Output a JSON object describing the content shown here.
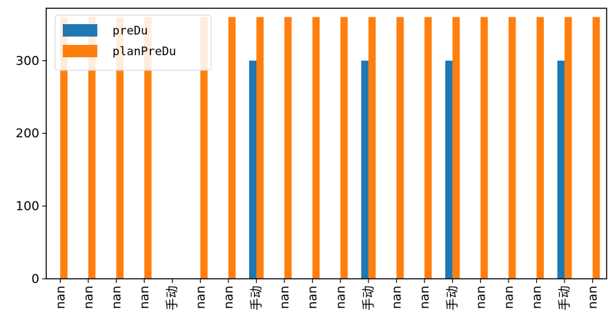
{
  "chart_data": {
    "type": "bar",
    "categories": [
      "nan",
      "nan",
      "nan",
      "nan",
      "手动",
      "nan",
      "nan",
      "手动",
      "nan",
      "nan",
      "nan",
      "手动",
      "nan",
      "nan",
      "手动",
      "nan",
      "nan",
      "nan",
      "手动",
      "nan"
    ],
    "series": [
      {
        "name": "preDu",
        "color": "#1f77b4",
        "values": [
          0,
          0,
          0,
          0,
          0,
          0,
          0,
          300,
          0,
          0,
          0,
          300,
          0,
          0,
          300,
          0,
          0,
          0,
          300,
          0
        ]
      },
      {
        "name": "planPreDu",
        "color": "#ff7f0e",
        "values": [
          360,
          360,
          360,
          360,
          0,
          360,
          360,
          360,
          360,
          360,
          360,
          360,
          360,
          360,
          360,
          360,
          360,
          360,
          360,
          360
        ]
      }
    ],
    "ylim": [
      0,
      372
    ],
    "yticks": [
      "0",
      "100",
      "200",
      "300"
    ],
    "legend_position": "upper-left",
    "grid": false
  }
}
